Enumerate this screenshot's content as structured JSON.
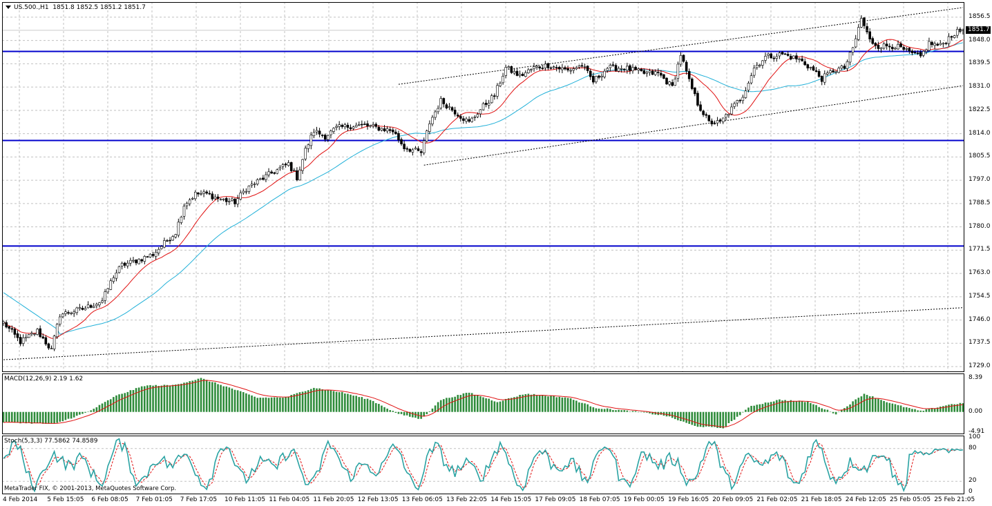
{
  "window": {
    "symbol_title": "US.500.,H1",
    "ohlc": "1851.8 1852.5 1851.2 1851.7",
    "current_price": "1851.7"
  },
  "macd_panel": {
    "title": "MACD(12,26,9) 2.19 1.62",
    "axis_ticks": [
      "8.39",
      "0.00",
      "-4.91"
    ]
  },
  "stoch_panel": {
    "title": "Stoch(5,3,3) 77.5862 74.8589",
    "axis_ticks": [
      "100",
      "80",
      "20",
      "0"
    ]
  },
  "copyright": "MetaTrader FIX, © 2001-2013, MetaQuotes Software Corp.",
  "time_axis": {
    "labels": [
      "4 Feb 2014",
      "5 Feb 15:05",
      "6 Feb 08:05",
      "7 Feb 01:05",
      "7 Feb 17:05",
      "10 Feb 11:05",
      "11 Feb 04:05",
      "11 Feb 20:05",
      "12 Feb 13:05",
      "13 Feb 06:05",
      "13 Feb 22:05",
      "14 Feb 15:05",
      "17 Feb 09:05",
      "18 Feb 07:05",
      "19 Feb 00:05",
      "19 Feb 16:05",
      "20 Feb 09:05",
      "21 Feb 02:05",
      "21 Feb 18:05",
      "24 Feb 12:05",
      "25 Feb 05:05",
      "25 Feb 21:05"
    ]
  },
  "chart_data": {
    "type": "candlestick",
    "timeframe": "H1",
    "symbol": "US.500.",
    "ylim": [
      1727,
      1862
    ],
    "price_axis_ticks": [
      1856.5,
      1848.0,
      1839.5,
      1831.0,
      1822.5,
      1814.0,
      1805.5,
      1797.0,
      1788.5,
      1780.0,
      1771.5,
      1763.0,
      1754.5,
      1746.0,
      1737.5,
      1729.0
    ],
    "horizontal_levels": [
      1844.0,
      1811.5,
      1773.0
    ],
    "channel_lines": [
      {
        "from": [
          0,
          1731.5
        ],
        "to": [
          340,
          1750.5
        ]
      },
      {
        "from": [
          140,
          1832.0
        ],
        "to": [
          340,
          1860.0
        ]
      },
      {
        "from": [
          149,
          1802.5
        ],
        "to": [
          340,
          1831.5
        ]
      }
    ],
    "price_keypoints": [
      [
        0,
        1745
      ],
      [
        6,
        1738
      ],
      [
        12,
        1742
      ],
      [
        17,
        1735
      ],
      [
        20,
        1748
      ],
      [
        28,
        1750
      ],
      [
        35,
        1753
      ],
      [
        39,
        1762
      ],
      [
        42,
        1766
      ],
      [
        48,
        1768
      ],
      [
        53,
        1770
      ],
      [
        56,
        1773
      ],
      [
        61,
        1778
      ],
      [
        64,
        1788
      ],
      [
        68,
        1792
      ],
      [
        72,
        1792
      ],
      [
        77,
        1790
      ],
      [
        82,
        1789
      ],
      [
        86,
        1794
      ],
      [
        94,
        1799
      ],
      [
        101,
        1803
      ],
      [
        104,
        1798
      ],
      [
        107,
        1808
      ],
      [
        110,
        1815
      ],
      [
        114,
        1813
      ],
      [
        118,
        1816
      ],
      [
        124,
        1817
      ],
      [
        128,
        1817
      ],
      [
        133,
        1816
      ],
      [
        138,
        1815
      ],
      [
        142,
        1809
      ],
      [
        148,
        1807
      ],
      [
        151,
        1818
      ],
      [
        155,
        1826
      ],
      [
        160,
        1822
      ],
      [
        165,
        1818
      ],
      [
        170,
        1824
      ],
      [
        174,
        1828
      ],
      [
        178,
        1838
      ],
      [
        183,
        1835
      ],
      [
        188,
        1838
      ],
      [
        193,
        1839
      ],
      [
        200,
        1837
      ],
      [
        205,
        1839
      ],
      [
        209,
        1833
      ],
      [
        214,
        1838
      ],
      [
        220,
        1838
      ],
      [
        227,
        1836
      ],
      [
        232,
        1836
      ],
      [
        237,
        1831
      ],
      [
        240,
        1843
      ],
      [
        243,
        1833
      ],
      [
        246,
        1825
      ],
      [
        250,
        1818
      ],
      [
        254,
        1818
      ],
      [
        258,
        1823
      ],
      [
        262,
        1828
      ],
      [
        266,
        1838
      ],
      [
        270,
        1842
      ],
      [
        276,
        1843
      ],
      [
        282,
        1841
      ],
      [
        286,
        1838
      ],
      [
        290,
        1834
      ],
      [
        294,
        1837
      ],
      [
        298,
        1838
      ],
      [
        301,
        1845
      ],
      [
        304,
        1856
      ],
      [
        307,
        1848
      ],
      [
        310,
        1846
      ],
      [
        316,
        1846
      ],
      [
        322,
        1843
      ],
      [
        325,
        1842
      ],
      [
        328,
        1847
      ],
      [
        332,
        1846
      ],
      [
        336,
        1850
      ],
      [
        340,
        1852
      ]
    ],
    "macd_keypoints": [
      [
        0,
        -2.5
      ],
      [
        18,
        -3.0
      ],
      [
        30,
        0.0
      ],
      [
        40,
        4.0
      ],
      [
        50,
        6.5
      ],
      [
        60,
        6.6
      ],
      [
        70,
        8.3
      ],
      [
        80,
        6.0
      ],
      [
        90,
        3.5
      ],
      [
        100,
        3.6
      ],
      [
        110,
        6.0
      ],
      [
        120,
        4.8
      ],
      [
        130,
        3.0
      ],
      [
        140,
        -0.5
      ],
      [
        148,
        -1.8
      ],
      [
        155,
        3.0
      ],
      [
        165,
        4.8
      ],
      [
        175,
        2.5
      ],
      [
        185,
        4.5
      ],
      [
        200,
        3.5
      ],
      [
        210,
        1.0
      ],
      [
        225,
        0.0
      ],
      [
        235,
        -1.0
      ],
      [
        245,
        -3.5
      ],
      [
        255,
        -4.0
      ],
      [
        265,
        1.5
      ],
      [
        275,
        3.0
      ],
      [
        285,
        2.5
      ],
      [
        295,
        -0.5
      ],
      [
        305,
        4.5
      ],
      [
        315,
        2.0
      ],
      [
        325,
        0.2
      ],
      [
        335,
        1.8
      ],
      [
        340,
        2.2
      ]
    ],
    "macd_signal_last": 1.62,
    "stoch_last": [
      77.5862,
      74.8589
    ],
    "stoch_levels": [
      80,
      20
    ],
    "macd_ylim": [
      -5.5,
      9.5
    ],
    "stoch_ylim": [
      0,
      100
    ]
  }
}
